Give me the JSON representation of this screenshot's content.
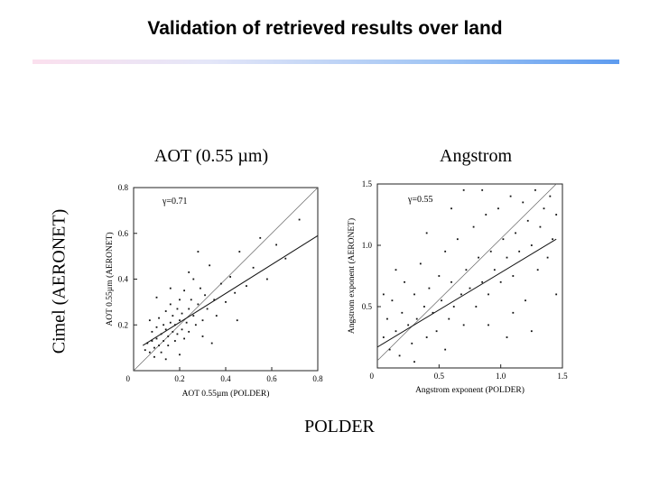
{
  "slide": {
    "title": "Validation of retrieved results over land",
    "panel_left_label": "AOT (0.55 µm)",
    "panel_right_label": "Angstrom",
    "shared_ylabel": "Cimel (AERONET)",
    "shared_xlabel": "POLDER",
    "accent_colors": [
      "#fbe0ee",
      "#9fc4f4",
      "#5d9bef"
    ]
  },
  "chart_data": [
    {
      "type": "scatter",
      "title": "",
      "xlabel": "AOT 0.55µm (POLDER)",
      "ylabel": "AOT 0.55µm (AERONET)",
      "xlim": [
        0,
        0.8
      ],
      "ylim": [
        0,
        0.8
      ],
      "xticks": [
        0,
        0.2,
        0.4,
        0.6,
        0.8
      ],
      "xtick_labels": [
        "0",
        "0.2",
        "0.4",
        "0.6",
        "0.8"
      ],
      "yticks": [
        0.2,
        0.4,
        0.6,
        0.8
      ],
      "ytick_labels": [
        "0.2",
        "0.4",
        "0.6",
        "0.8"
      ],
      "annotation": "γ=0.71",
      "grid": false,
      "lines": [
        {
          "kind": "one-to-one",
          "x": [
            0.0,
            0.8
          ],
          "y": [
            0.0,
            0.8
          ]
        },
        {
          "kind": "regression",
          "x": [
            0.04,
            0.8
          ],
          "y": [
            0.11,
            0.59
          ]
        }
      ],
      "points": [
        [
          0.05,
          0.09
        ],
        [
          0.06,
          0.12
        ],
        [
          0.07,
          0.08
        ],
        [
          0.08,
          0.13
        ],
        [
          0.08,
          0.17
        ],
        [
          0.09,
          0.1
        ],
        [
          0.09,
          0.06
        ],
        [
          0.1,
          0.14
        ],
        [
          0.1,
          0.19
        ],
        [
          0.11,
          0.11
        ],
        [
          0.11,
          0.23
        ],
        [
          0.12,
          0.16
        ],
        [
          0.12,
          0.08
        ],
        [
          0.13,
          0.2
        ],
        [
          0.13,
          0.13
        ],
        [
          0.14,
          0.18
        ],
        [
          0.14,
          0.26
        ],
        [
          0.15,
          0.15
        ],
        [
          0.15,
          0.11
        ],
        [
          0.16,
          0.21
        ],
        [
          0.16,
          0.29
        ],
        [
          0.17,
          0.17
        ],
        [
          0.17,
          0.24
        ],
        [
          0.18,
          0.13
        ],
        [
          0.18,
          0.2
        ],
        [
          0.19,
          0.27
        ],
        [
          0.19,
          0.16
        ],
        [
          0.2,
          0.22
        ],
        [
          0.2,
          0.31
        ],
        [
          0.21,
          0.18
        ],
        [
          0.21,
          0.25
        ],
        [
          0.22,
          0.14
        ],
        [
          0.22,
          0.35
        ],
        [
          0.23,
          0.21
        ],
        [
          0.24,
          0.27
        ],
        [
          0.24,
          0.17
        ],
        [
          0.25,
          0.31
        ],
        [
          0.26,
          0.24
        ],
        [
          0.26,
          0.4
        ],
        [
          0.27,
          0.2
        ],
        [
          0.28,
          0.29
        ],
        [
          0.29,
          0.36
        ],
        [
          0.3,
          0.22
        ],
        [
          0.31,
          0.33
        ],
        [
          0.32,
          0.27
        ],
        [
          0.33,
          0.46
        ],
        [
          0.35,
          0.31
        ],
        [
          0.36,
          0.24
        ],
        [
          0.38,
          0.38
        ],
        [
          0.4,
          0.3
        ],
        [
          0.42,
          0.41
        ],
        [
          0.44,
          0.34
        ],
        [
          0.46,
          0.52
        ],
        [
          0.49,
          0.37
        ],
        [
          0.52,
          0.45
        ],
        [
          0.55,
          0.58
        ],
        [
          0.58,
          0.4
        ],
        [
          0.62,
          0.55
        ],
        [
          0.66,
          0.49
        ],
        [
          0.72,
          0.66
        ],
        [
          0.1,
          0.32
        ],
        [
          0.14,
          0.05
        ],
        [
          0.24,
          0.43
        ],
        [
          0.34,
          0.12
        ],
        [
          0.07,
          0.22
        ],
        [
          0.2,
          0.07
        ],
        [
          0.28,
          0.52
        ],
        [
          0.45,
          0.22
        ],
        [
          0.16,
          0.36
        ],
        [
          0.3,
          0.15
        ]
      ]
    },
    {
      "type": "scatter",
      "title": "",
      "xlabel": "Angstrom exponent (POLDER)",
      "ylabel": "Angstrom exponent (AERONET)",
      "xlim": [
        0,
        1.5
      ],
      "ylim": [
        0,
        1.5
      ],
      "xticks": [
        0,
        0.5,
        1.0,
        1.5
      ],
      "xtick_labels": [
        "0",
        "0.5",
        "1.0",
        "1.5"
      ],
      "yticks": [
        0.5,
        1.0,
        1.5
      ],
      "ytick_labels": [
        "0.5",
        "1.0",
        "1.5"
      ],
      "annotation": "γ=0.55",
      "grid": false,
      "lines": [
        {
          "kind": "one-to-one",
          "x": [
            0.0,
            1.45
          ],
          "y": [
            0.06,
            1.5
          ]
        },
        {
          "kind": "regression",
          "x": [
            0.0,
            1.45
          ],
          "y": [
            0.17,
            1.05
          ]
        }
      ],
      "points": [
        [
          0.05,
          0.25
        ],
        [
          0.08,
          0.4
        ],
        [
          0.1,
          0.15
        ],
        [
          0.12,
          0.55
        ],
        [
          0.15,
          0.3
        ],
        [
          0.18,
          0.1
        ],
        [
          0.2,
          0.45
        ],
        [
          0.22,
          0.7
        ],
        [
          0.25,
          0.35
        ],
        [
          0.28,
          0.2
        ],
        [
          0.3,
          0.6
        ],
        [
          0.32,
          0.4
        ],
        [
          0.35,
          0.85
        ],
        [
          0.38,
          0.5
        ],
        [
          0.4,
          0.25
        ],
        [
          0.42,
          0.65
        ],
        [
          0.45,
          0.45
        ],
        [
          0.48,
          0.3
        ],
        [
          0.5,
          0.75
        ],
        [
          0.52,
          0.55
        ],
        [
          0.55,
          0.95
        ],
        [
          0.58,
          0.4
        ],
        [
          0.6,
          0.7
        ],
        [
          0.62,
          0.5
        ],
        [
          0.65,
          1.05
        ],
        [
          0.68,
          0.6
        ],
        [
          0.7,
          0.35
        ],
        [
          0.72,
          0.8
        ],
        [
          0.75,
          0.65
        ],
        [
          0.78,
          1.15
        ],
        [
          0.8,
          0.5
        ],
        [
          0.82,
          0.9
        ],
        [
          0.85,
          0.7
        ],
        [
          0.88,
          1.25
        ],
        [
          0.9,
          0.6
        ],
        [
          0.92,
          0.95
        ],
        [
          0.95,
          0.8
        ],
        [
          0.98,
          1.3
        ],
        [
          1.0,
          0.7
        ],
        [
          1.02,
          1.05
        ],
        [
          1.05,
          0.9
        ],
        [
          1.08,
          1.4
        ],
        [
          1.1,
          0.75
        ],
        [
          1.12,
          1.1
        ],
        [
          1.15,
          0.95
        ],
        [
          1.18,
          1.35
        ],
        [
          1.2,
          0.55
        ],
        [
          1.22,
          1.2
        ],
        [
          1.25,
          1.0
        ],
        [
          1.28,
          1.45
        ],
        [
          1.3,
          0.8
        ],
        [
          1.32,
          1.15
        ],
        [
          1.35,
          1.3
        ],
        [
          1.38,
          0.9
        ],
        [
          1.4,
          1.4
        ],
        [
          1.42,
          1.05
        ],
        [
          1.45,
          1.25
        ],
        [
          0.15,
          0.8
        ],
        [
          0.4,
          1.1
        ],
        [
          0.6,
          1.3
        ],
        [
          0.9,
          0.35
        ],
        [
          1.1,
          0.45
        ],
        [
          0.3,
          0.05
        ],
        [
          1.25,
          0.3
        ],
        [
          0.7,
          1.45
        ],
        [
          0.05,
          0.6
        ],
        [
          1.45,
          0.6
        ],
        [
          0.85,
          1.45
        ],
        [
          0.55,
          0.15
        ],
        [
          1.05,
          0.25
        ]
      ]
    }
  ]
}
